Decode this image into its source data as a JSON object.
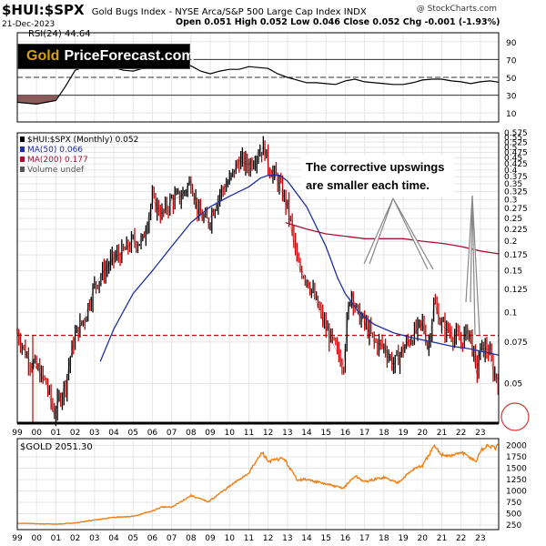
{
  "header": {
    "symbol": "$HUI:$SPX",
    "description": "Gold Bugs Index - NYSE Arca/S&P 500 Large Cap Index  INDX",
    "watermark": "@ StockCharts.com",
    "date": "21-Dec-2023",
    "ohlc": "Open 0.051  High 0.052  Low 0.046  Close 0.052  Chg -0.001 (-1.93%)"
  },
  "logo": {
    "gold": "Gold",
    "rest": "PriceForecast.com"
  },
  "annotation": {
    "line1": "The corrective upswings",
    "line2": "are smaller each time."
  },
  "colors": {
    "price": "#000000",
    "price_down": "#cc0000",
    "ma50": "#1f2fa0",
    "ma200": "#aa1133",
    "gold_line": "#f07f13",
    "dashed": "#cc0000",
    "rsi_fill": "#8a5a5a",
    "circle": "#dd3333",
    "grid": "#e6e6e6"
  },
  "chart_data": [
    {
      "type": "line",
      "title": "RSI(24) 44.64",
      "ylim": [
        0,
        100
      ],
      "y_ticks": [
        10,
        30,
        50,
        70,
        90
      ],
      "reference_lines": [
        30,
        50,
        70
      ],
      "x": [
        1999.0,
        1999.5,
        2000.0,
        2000.5,
        2001.0,
        2001.5,
        2002.0,
        2002.5,
        2003.0,
        2003.5,
        2004.0,
        2004.5,
        2005.0,
        2005.5,
        2006.0,
        2006.5,
        2007.0,
        2007.5,
        2008.0,
        2008.5,
        2009.0,
        2009.5,
        2010.0,
        2010.5,
        2011.0,
        2011.5,
        2012.0,
        2012.5,
        2013.0,
        2013.5,
        2014.0,
        2014.5,
        2015.0,
        2015.5,
        2016.0,
        2016.5,
        2017.0,
        2017.5,
        2018.0,
        2018.5,
        2019.0,
        2019.5,
        2020.0,
        2020.5,
        2021.0,
        2021.5,
        2022.0,
        2022.5,
        2023.0,
        2023.5,
        2023.95
      ],
      "values": [
        22,
        21,
        20,
        22,
        24,
        40,
        58,
        62,
        62,
        64,
        61,
        58,
        57,
        60,
        63,
        61,
        60,
        62,
        63,
        57,
        54,
        57,
        59,
        59,
        62,
        61,
        60,
        54,
        50,
        47,
        44,
        44,
        43,
        42,
        46,
        48,
        45,
        44,
        43,
        42,
        42,
        44,
        47,
        48,
        48,
        46,
        45,
        43,
        45,
        46,
        44.64
      ]
    },
    {
      "type": "line",
      "title": "$HUI:$SPX (Monthly) 0.052",
      "scale": "log",
      "ylim": [
        0.034,
        0.575
      ],
      "y_ticks": [
        0.05,
        0.075,
        0.1,
        0.125,
        0.15,
        0.175,
        0.2,
        0.225,
        0.25,
        0.275,
        0.3,
        0.325,
        0.35,
        0.375,
        0.4,
        0.425,
        0.45,
        0.475,
        0.5,
        0.525,
        0.55,
        0.575
      ],
      "x_ticks": [
        "99",
        "00",
        "01",
        "02",
        "03",
        "04",
        "05",
        "06",
        "07",
        "08",
        "09",
        "10",
        "11",
        "12",
        "13",
        "14",
        "15",
        "16",
        "17",
        "18",
        "19",
        "20",
        "21",
        "22",
        "23"
      ],
      "horizontal_line": 0.08,
      "series": [
        {
          "name": "$HUI:$SPX (Monthly) 0.052",
          "x": [
            1999.0,
            1999.5,
            2000.0,
            2000.5,
            2000.9,
            2001.5,
            2002.0,
            2002.5,
            2003.0,
            2003.5,
            2004.0,
            2004.5,
            2005.0,
            2005.5,
            2006.0,
            2006.5,
            2007.0,
            2007.5,
            2008.0,
            2008.4,
            2008.9,
            2009.5,
            2010.0,
            2010.5,
            2011.0,
            2011.5,
            2011.8,
            2012.0,
            2012.5,
            2013.0,
            2013.5,
            2014.0,
            2014.5,
            2015.0,
            2015.5,
            2015.9,
            2016.3,
            2016.6,
            2017.0,
            2017.5,
            2018.0,
            2018.5,
            2019.0,
            2019.5,
            2020.0,
            2020.3,
            2020.6,
            2021.0,
            2021.5,
            2022.0,
            2022.4,
            2022.8,
            2023.0,
            2023.4,
            2023.7,
            2023.95
          ],
          "values": [
            0.082,
            0.065,
            0.058,
            0.05,
            0.037,
            0.05,
            0.08,
            0.095,
            0.13,
            0.15,
            0.17,
            0.18,
            0.2,
            0.2,
            0.3,
            0.26,
            0.3,
            0.31,
            0.36,
            0.26,
            0.24,
            0.32,
            0.36,
            0.44,
            0.42,
            0.48,
            0.5,
            0.42,
            0.36,
            0.28,
            0.16,
            0.14,
            0.11,
            0.085,
            0.07,
            0.06,
            0.125,
            0.1,
            0.09,
            0.075,
            0.072,
            0.06,
            0.07,
            0.08,
            0.09,
            0.07,
            0.11,
            0.088,
            0.082,
            0.075,
            0.085,
            0.055,
            0.07,
            0.07,
            0.055,
            0.052
          ]
        },
        {
          "name": "MA(50) 0.066",
          "x": [
            2003.3,
            2004.0,
            2005.0,
            2006.0,
            2007.0,
            2008.0,
            2009.0,
            2010.0,
            2011.0,
            2011.6,
            2012.0,
            2012.6,
            2013.0,
            2014.0,
            2015.0,
            2015.6,
            2016.0,
            2016.7,
            2017.5,
            2018.5,
            2019.5,
            2020.5,
            2021.5,
            2022.5,
            2023.95
          ],
          "values": [
            0.062,
            0.085,
            0.12,
            0.15,
            0.19,
            0.24,
            0.28,
            0.31,
            0.34,
            0.37,
            0.38,
            0.38,
            0.36,
            0.28,
            0.19,
            0.14,
            0.12,
            0.1,
            0.089,
            0.082,
            0.078,
            0.075,
            0.072,
            0.07,
            0.066
          ]
        },
        {
          "name": "MA(200) 0.177",
          "x": [
            2012.9,
            2014.0,
            2015.0,
            2016.0,
            2017.0,
            2018.0,
            2019.0,
            2020.0,
            2021.0,
            2022.0,
            2023.0,
            2023.95
          ],
          "values": [
            0.24,
            0.225,
            0.215,
            0.21,
            0.205,
            0.205,
            0.205,
            0.2,
            0.196,
            0.19,
            0.182,
            0.177
          ]
        }
      ],
      "legend": [
        "$HUI:$SPX (Monthly) 0.052",
        "MA(50) 0.066",
        "MA(200) 0.177",
        "Volume undef"
      ]
    },
    {
      "type": "line",
      "title": "$GOLD 2051.30",
      "ylim": [
        150,
        2150
      ],
      "y_ticks": [
        250,
        500,
        750,
        1000,
        1250,
        1500,
        1750,
        2000
      ],
      "x": [
        1999.0,
        2000.0,
        2001.0,
        2002.0,
        2003.0,
        2004.0,
        2005.0,
        2006.0,
        2006.5,
        2007.0,
        2008.0,
        2008.9,
        2009.5,
        2010.0,
        2011.0,
        2011.7,
        2012.0,
        2012.8,
        2013.5,
        2014.0,
        2015.0,
        2015.9,
        2016.5,
        2017.0,
        2018.0,
        2018.7,
        2019.0,
        2019.6,
        2020.0,
        2020.6,
        2021.0,
        2021.5,
        2022.0,
        2022.8,
        2023.0,
        2023.4,
        2023.8,
        2023.95
      ],
      "values": [
        290,
        280,
        270,
        300,
        360,
        420,
        440,
        560,
        650,
        640,
        900,
        760,
        950,
        1100,
        1400,
        1850,
        1650,
        1720,
        1250,
        1250,
        1150,
        1060,
        1330,
        1200,
        1300,
        1180,
        1290,
        1500,
        1550,
        1980,
        1800,
        1770,
        1850,
        1650,
        1880,
        2000,
        1930,
        2051.3
      ]
    }
  ]
}
